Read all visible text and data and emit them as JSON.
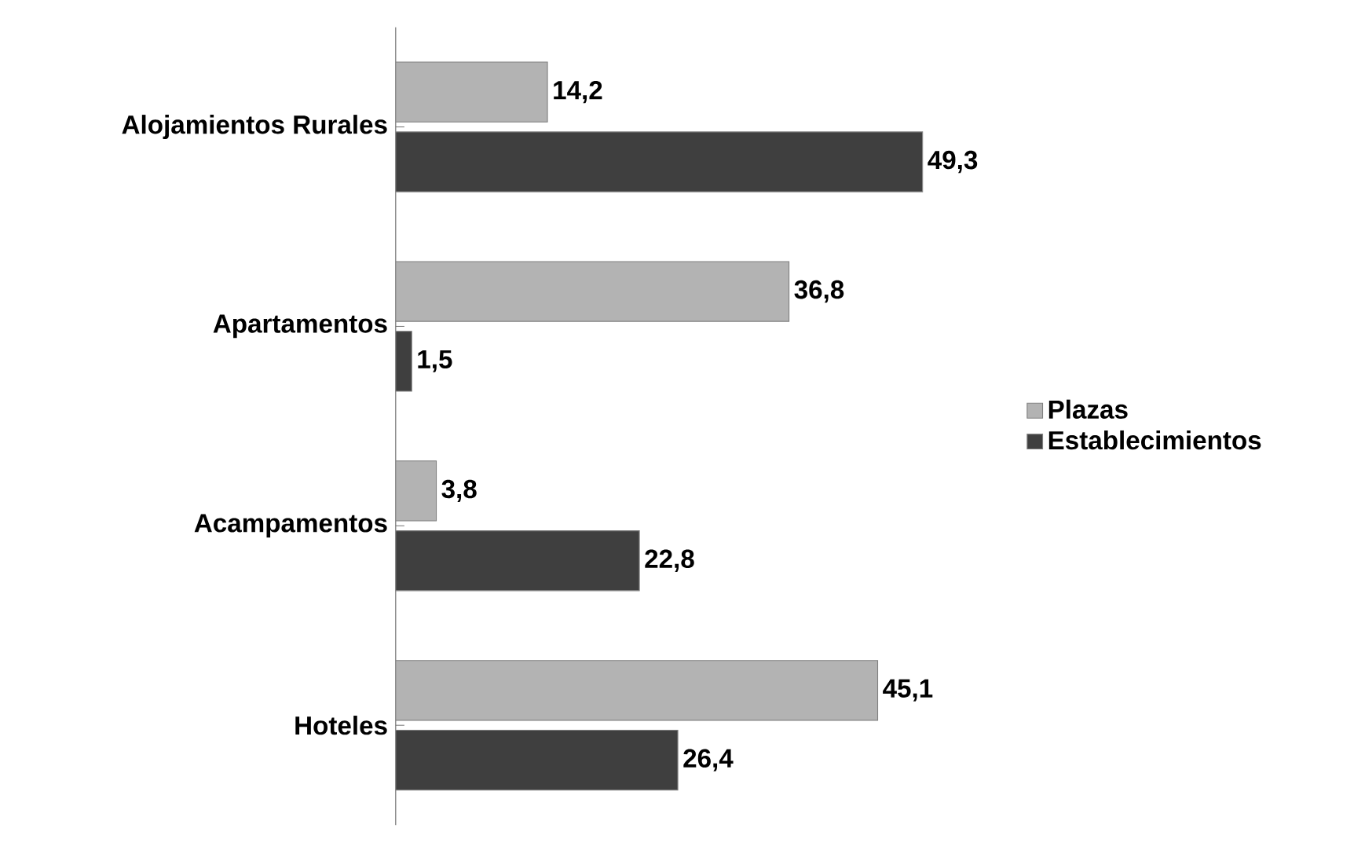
{
  "chart_data": {
    "type": "bar",
    "orientation": "horizontal",
    "categories": [
      "Alojamientos Rurales",
      "Apartamentos",
      "Acampamentos",
      "Hoteles"
    ],
    "series": [
      {
        "name": "Plazas",
        "color": "#b3b3b3",
        "values": [
          14.2,
          36.8,
          3.8,
          45.1
        ],
        "value_labels": [
          "14,2",
          "36,8",
          "3,8",
          "45,1"
        ]
      },
      {
        "name": "Establecimientos",
        "color": "#3f3f3f",
        "values": [
          49.3,
          1.5,
          22.8,
          26.4
        ],
        "value_labels": [
          "49,3",
          "1,5",
          "22,8",
          "26,4"
        ]
      }
    ],
    "legend": "right"
  }
}
